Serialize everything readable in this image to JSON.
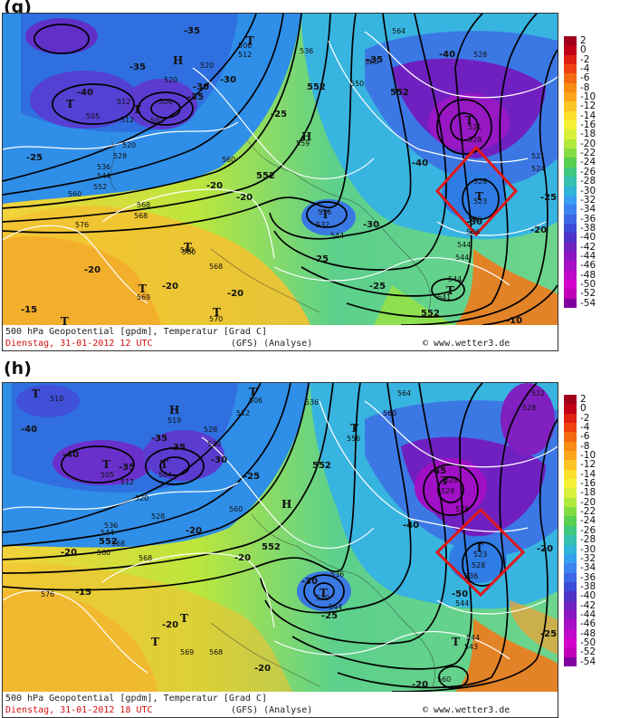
{
  "panels": [
    {
      "letter": "(g)",
      "caption_line1": "500 hPa Geopotential [gpdm], Temperatur [Grad C]",
      "caption_date": "Dienstag, 31-01-2012  12 UTC",
      "caption_model": "(GFS)  (Analyse)",
      "caption_source": "© www.wetter3.de",
      "height_labels": [
        "505",
        "512",
        "520",
        "502",
        "504",
        "512",
        "520",
        "528",
        "536",
        "544",
        "552",
        "560",
        "568",
        "576",
        "506",
        "512",
        "520",
        "536",
        "550",
        "559",
        "552",
        "560",
        "564",
        "552",
        "528",
        "521",
        "528",
        "552",
        "536",
        "544",
        "536",
        "544",
        "532",
        "544",
        "560",
        "568",
        "560",
        "568",
        "544",
        "541",
        "552",
        "570",
        "560",
        "569",
        "528",
        "523",
        "536",
        "521",
        "524"
      ],
      "temp_labels": [
        "-35",
        "-35",
        "-30",
        "-40",
        "-35",
        "-25",
        "-30",
        "-25",
        "-20",
        "-20",
        "-25",
        "-20",
        "-20",
        "-30",
        "-35",
        "-40",
        "-40",
        "-30",
        "-25",
        "-20",
        "-25",
        "-10",
        "-15",
        "-20"
      ],
      "lows": [
        "T",
        "T",
        "T",
        "T",
        "T",
        "T",
        "T",
        "T",
        "T",
        "T",
        "T"
      ],
      "highs": [
        "H",
        "H"
      ]
    },
    {
      "letter": "(h)",
      "caption_line1": "500 hPa Geopotential [gpdm], Temperatur [Grad C]",
      "caption_date": "Dienstag, 31-01-2012  18 UTC",
      "caption_model": "(GFS)  (Analyse)",
      "caption_source": "© www.wetter3.de",
      "height_labels": [
        "510",
        "506",
        "512",
        "519",
        "528",
        "520",
        "505",
        "504",
        "512",
        "520",
        "528",
        "536",
        "544",
        "552",
        "560",
        "568",
        "576",
        "560",
        "568",
        "536",
        "556",
        "552",
        "560",
        "564",
        "528",
        "529",
        "528",
        "523",
        "528",
        "536",
        "544",
        "536",
        "530",
        "544",
        "552",
        "560",
        "569",
        "543",
        "544",
        "522",
        "528",
        "568"
      ],
      "temp_labels": [
        "-40",
        "-35",
        "-35",
        "-30",
        "-40",
        "-35",
        "-25",
        "-20",
        "-20",
        "-20",
        "-15",
        "-20",
        "-30",
        "-25",
        "-45",
        "-40",
        "-50",
        "-20",
        "-20",
        "-25",
        "-20"
      ],
      "lows": [
        "T",
        "T",
        "T",
        "T",
        "T",
        "T",
        "T",
        "T",
        "T",
        "T",
        "T"
      ],
      "highs": [
        "H",
        "H"
      ]
    }
  ],
  "colorbar": {
    "labels": [
      "2",
      "0",
      "-2",
      "-4",
      "-6",
      "-8",
      "-10",
      "-12",
      "-14",
      "-16",
      "-18",
      "-20",
      "-22",
      "-24",
      "-26",
      "-28",
      "-30",
      "-32",
      "-34",
      "-36",
      "-38",
      "-40",
      "-42",
      "-44",
      "-46",
      "-48",
      "-50",
      "-52",
      "-54"
    ],
    "colors": [
      "#a0001c",
      "#c00018",
      "#e02010",
      "#f04010",
      "#f46a10",
      "#f88c14",
      "#fca41c",
      "#fcc424",
      "#fce02c",
      "#f4f034",
      "#d8f03c",
      "#b0e83c",
      "#84dc44",
      "#58d050",
      "#40c880",
      "#38c0b0",
      "#30b4d8",
      "#38a0f0",
      "#3c84f0",
      "#3c68e8",
      "#3c4cd8",
      "#5034c8",
      "#7024c0",
      "#8c18c0",
      "#a810c4",
      "#c008c8",
      "#d400cc",
      "#c000b8",
      "#8000a0"
    ],
    "units": "Grad C"
  },
  "overlay": {
    "box_color": "#e01818"
  }
}
